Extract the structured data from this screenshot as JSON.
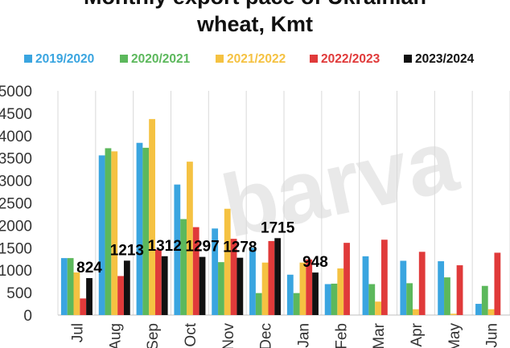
{
  "chart_data": {
    "type": "bar",
    "title_lines": [
      "Monthly export pace of Ukrainian",
      "wheat, Kmt"
    ],
    "watermark": "barva",
    "categories": [
      "Jul",
      "Aug",
      "Sep",
      "Oct",
      "Nov",
      "Dec",
      "Jan",
      "Feb",
      "Mar",
      "Apr",
      "May",
      "Jun"
    ],
    "series": [
      {
        "name": "2019/2020",
        "color": "#3aa5e0",
        "values": [
          1270,
          3560,
          3840,
          2910,
          1930,
          1500,
          900,
          690,
          1310,
          1210,
          1200,
          250
        ]
      },
      {
        "name": "2020/2021",
        "color": "#5cb85c",
        "values": [
          1270,
          3720,
          3730,
          2140,
          1180,
          490,
          490,
          700,
          690,
          710,
          840,
          650
        ]
      },
      {
        "name": "2021/2022",
        "color": "#f5c242",
        "values": [
          950,
          3650,
          4370,
          3420,
          2370,
          1170,
          1170,
          1040,
          300,
          130,
          30,
          130
        ]
      },
      {
        "name": "2022/2023",
        "color": "#e03a3a",
        "values": [
          370,
          870,
          1460,
          1960,
          1700,
          1650,
          1240,
          1610,
          1680,
          1410,
          1110,
          1390
        ]
      },
      {
        "name": "2023/2024",
        "color": "#111111",
        "values": [
          824,
          1213,
          1312,
          1297,
          1278,
          1715,
          948,
          null,
          null,
          null,
          null,
          null
        ]
      }
    ],
    "data_labels": [
      {
        "category": "Jul",
        "series": "2023/2024",
        "text": "824"
      },
      {
        "category": "Aug",
        "series": "2023/2024",
        "text": "1213"
      },
      {
        "category": "Sep",
        "series": "2023/2024",
        "text": "1312"
      },
      {
        "category": "Oct",
        "series": "2023/2024",
        "text": "1297"
      },
      {
        "category": "Nov",
        "series": "2023/2024",
        "text": "1278"
      },
      {
        "category": "Dec",
        "series": "2023/2024",
        "text": "1715"
      },
      {
        "category": "Jan",
        "series": "2023/2024",
        "text": "948"
      }
    ],
    "ylim": [
      0,
      5000
    ],
    "yticks": [
      0,
      500,
      1000,
      1500,
      2000,
      2500,
      3000,
      3500,
      4000,
      4500,
      5000
    ],
    "legend_position": "top",
    "grid": "vertical"
  }
}
